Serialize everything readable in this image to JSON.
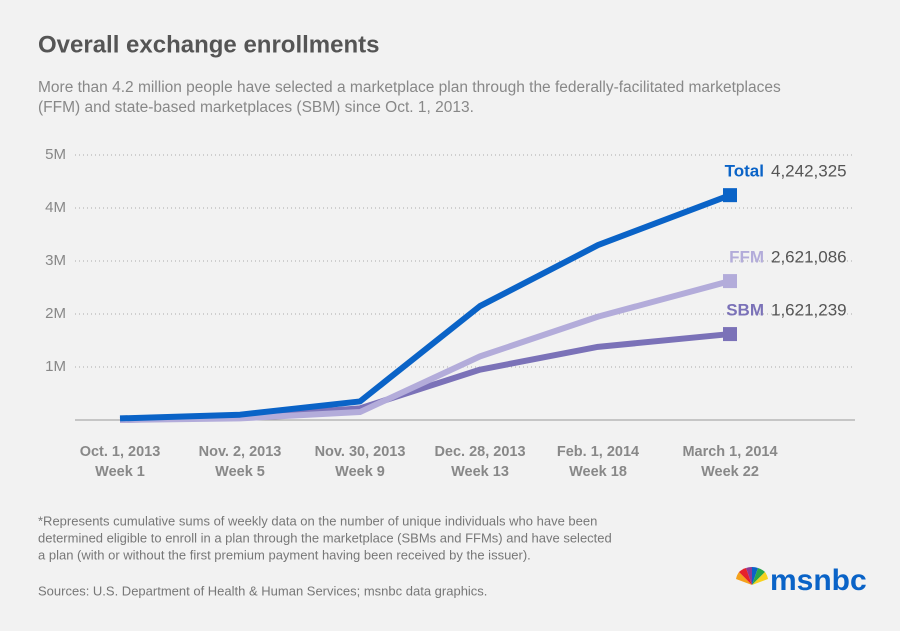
{
  "chart_data": {
    "type": "line",
    "title": "Overall exchange enrollments",
    "subtitle": [
      "More than 4.2 million people have selected a marketplace plan through the federally-facilitated marketplaces",
      "(FFM) and state-based marketplaces (SBM) since Oct. 1, 2013."
    ],
    "categories": [
      "Oct. 1, 2013",
      "Nov. 2, 2013",
      "Nov. 30, 2013",
      "Dec. 28, 2013",
      "Feb. 1, 2014",
      "March 1, 2014"
    ],
    "category_sublabels": [
      "Week 1",
      "Week 5",
      "Week 9",
      "Week 13",
      "Week 18",
      "Week 22"
    ],
    "series": [
      {
        "name": "Total",
        "color": "#0a63c7",
        "values": [
          0.03,
          0.1,
          0.35,
          2.15,
          3.3,
          4.242325
        ],
        "value_labels": [
          null,
          null,
          null,
          null,
          null,
          "4,242,325"
        ]
      },
      {
        "name": "FFM",
        "color": "#b3acda",
        "values": [
          0,
          0.03,
          0.15,
          1.2,
          1.95,
          2.621086
        ],
        "value_labels": [
          null,
          null,
          null,
          null,
          null,
          "2,621,086"
        ]
      },
      {
        "name": "SBM",
        "color": "#7b72b8",
        "values": [
          0,
          0.06,
          0.22,
          0.95,
          1.38,
          1.621239
        ],
        "value_labels": [
          null,
          null,
          null,
          null,
          null,
          "1,621,239"
        ]
      }
    ],
    "ylim": [
      0,
      5
    ],
    "yticks": [
      {
        "value": 1,
        "label": "1M"
      },
      {
        "value": 2,
        "label": "2M"
      },
      {
        "value": 3,
        "label": "3M"
      },
      {
        "value": 4,
        "label": "4M"
      },
      {
        "value": 5,
        "label": "5M"
      }
    ],
    "grid": true,
    "footnote": [
      "*Represents cumulative sums of weekly data on the number of unique individuals who have been",
      "determined eligible to enroll in a plan through the marketplace (SBMs and FFMs) and have selected",
      "a plan (with or without the first premium payment having been received by the issuer)."
    ],
    "source": "Sources: U.S. Department of Health & Human Services; msnbc data graphics.",
    "logo": "msnbc"
  }
}
